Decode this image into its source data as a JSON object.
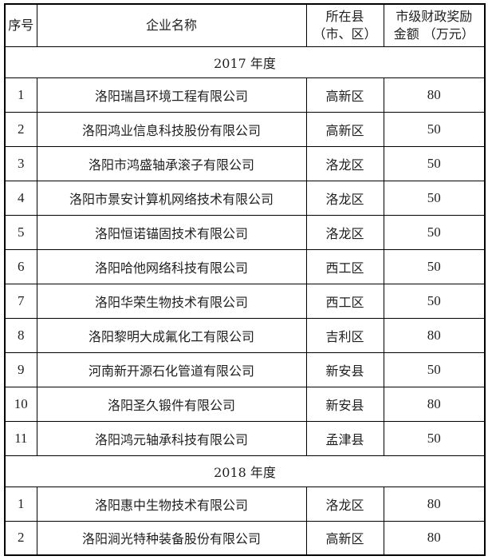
{
  "table": {
    "headers": {
      "no": "序号",
      "company": "企业名称",
      "district_line1": "所在县",
      "district_line2": "（市、区）",
      "amount_line1": "市级财政奖励",
      "amount_line2": "金额 （万元）"
    },
    "sections": [
      {
        "label": "2017 年度",
        "rows": [
          {
            "no": "1",
            "company": "洛阳瑞昌环境工程有限公司",
            "district": "高新区",
            "amount": "80"
          },
          {
            "no": "2",
            "company": "洛阳鸿业信息科技股份有限公司",
            "district": "高新区",
            "amount": "50"
          },
          {
            "no": "3",
            "company": "洛阳市鸿盛轴承滚子有限公司",
            "district": "洛龙区",
            "amount": "50"
          },
          {
            "no": "4",
            "company": "洛阳市景安计算机网络技术有限公司",
            "district": "洛龙区",
            "amount": "50"
          },
          {
            "no": "5",
            "company": "洛阳恒诺锚固技术有限公司",
            "district": "洛龙区",
            "amount": "50"
          },
          {
            "no": "6",
            "company": "洛阳哈他网络科技有限公司",
            "district": "西工区",
            "amount": "50"
          },
          {
            "no": "7",
            "company": "洛阳华荣生物技术有限公司",
            "district": "西工区",
            "amount": "50"
          },
          {
            "no": "8",
            "company": "洛阳黎明大成氟化工有限公司",
            "district": "吉利区",
            "amount": "80"
          },
          {
            "no": "9",
            "company": "河南新开源石化管道有限公司",
            "district": "新安县",
            "amount": "50"
          },
          {
            "no": "10",
            "company": "洛阳圣久锻件有限公司",
            "district": "新安县",
            "amount": "80"
          },
          {
            "no": "11",
            "company": "洛阳鸿元轴承科技有限公司",
            "district": "孟津县",
            "amount": "50"
          }
        ]
      },
      {
        "label": "2018 年度",
        "rows": [
          {
            "no": "1",
            "company": "洛阳惠中生物技术有限公司",
            "district": "洛龙区",
            "amount": "80"
          },
          {
            "no": "2",
            "company": "洛阳涧光特种装备股份有限公司",
            "district": "高新区",
            "amount": "80"
          }
        ]
      }
    ]
  }
}
